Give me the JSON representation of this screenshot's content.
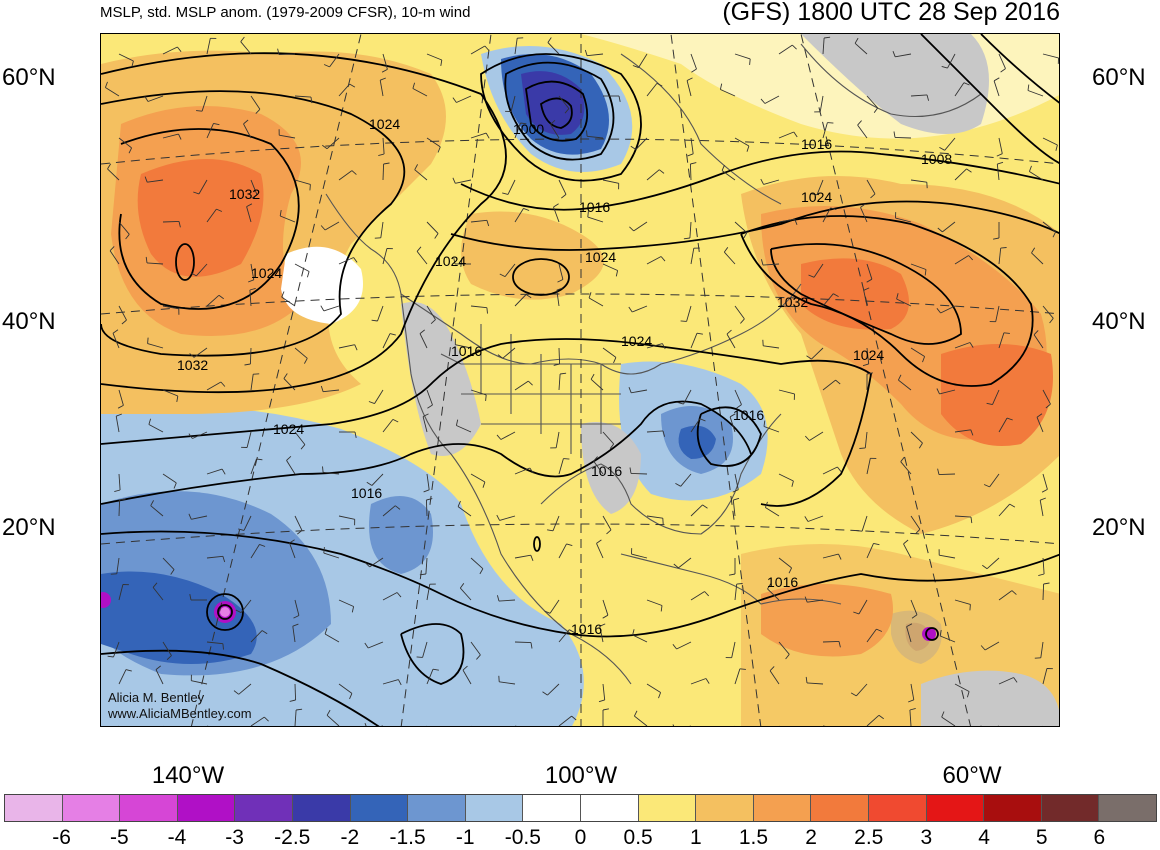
{
  "header": {
    "left_title": "MSLP, std. MSLP anom. (1979-2009 CFSR), 10-m wind",
    "right_title": "(GFS) 1800 UTC 28 Sep 2016"
  },
  "lat_labels": [
    "60°N",
    "40°N",
    "20°N"
  ],
  "lon_labels": [
    "140°W",
    "100°W",
    "60°W"
  ],
  "credit": [
    "Alicia M. Bentley",
    "www.AliciaMBentley.com"
  ],
  "isobar_labels": [
    "1024",
    "1032",
    "1024",
    "1032",
    "1024",
    "1000",
    "1016",
    "1016",
    "1008",
    "1024",
    "1024",
    "1024",
    "1032",
    "1024",
    "1016",
    "1024",
    "1016",
    "1016",
    "1016",
    "1016",
    "1016"
  ],
  "colorbar": {
    "labels": [
      "-6",
      "-5",
      "-4",
      "-3",
      "-2.5",
      "-2",
      "-1.5",
      "-1",
      "-0.5",
      "0",
      "0.5",
      "1",
      "1.5",
      "2",
      "2.5",
      "3",
      "4",
      "5",
      "6"
    ],
    "colors": [
      "#e9b5e9",
      "#e57fe5",
      "#d646d6",
      "#b010c6",
      "#7030b8",
      "#3a3aa8",
      "#3464b8",
      "#6d96d0",
      "#a8c8e6",
      "#ffffff",
      "#ffffff",
      "#fbe878",
      "#f4c060",
      "#f4a050",
      "#f27a3c",
      "#f04a30",
      "#e41616",
      "#a80e0e",
      "#722a2a",
      "#7a6e6a"
    ]
  },
  "colors": {
    "land_gray": "#c8c8c8",
    "contour": "#000000",
    "coast": "#555555"
  }
}
